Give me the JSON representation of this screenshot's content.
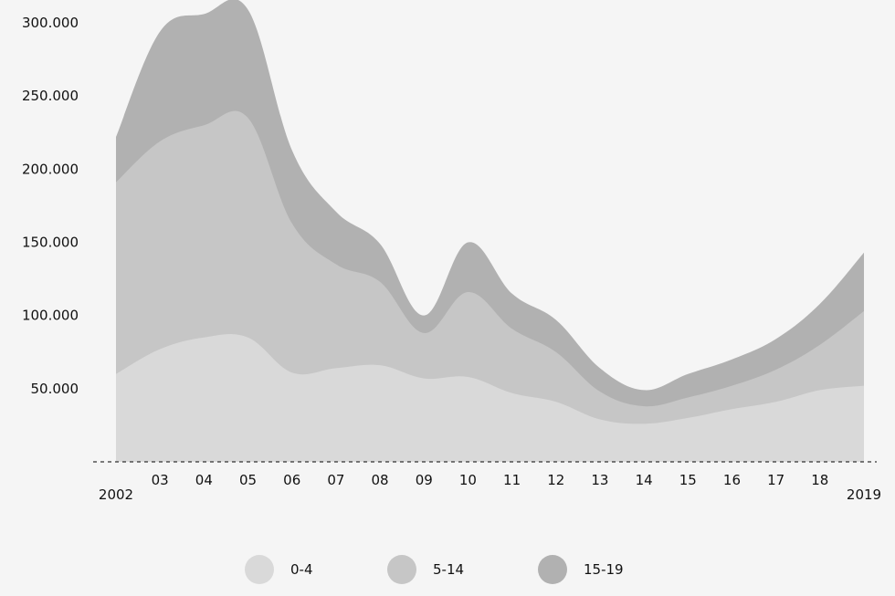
{
  "chart_data": {
    "type": "area",
    "stacked": true,
    "title": "",
    "xlabel": "",
    "ylabel": "",
    "categories": [
      "2002",
      "03",
      "04",
      "05",
      "06",
      "07",
      "08",
      "09",
      "10",
      "11",
      "12",
      "13",
      "14",
      "15",
      "16",
      "17",
      "18",
      "2019"
    ],
    "ylim": [
      0,
      300000
    ],
    "yticks": [
      "50.000",
      "100.000",
      "150.000",
      "200.000",
      "250.000",
      "300.000"
    ],
    "ytick_values": [
      50000,
      100000,
      150000,
      200000,
      250000,
      300000
    ],
    "grid": false,
    "legend_position": "bottom",
    "series": [
      {
        "name": "0-4",
        "color": "#d9d9d9",
        "values": [
          60000,
          77000,
          85000,
          85000,
          61000,
          64000,
          66000,
          57000,
          58000,
          47000,
          41000,
          29000,
          26000,
          30000,
          36000,
          41000,
          49000,
          52000
        ]
      },
      {
        "name": "5-14",
        "color": "#c6c6c6",
        "values": [
          131000,
          142000,
          145000,
          150000,
          102000,
          71000,
          57000,
          31000,
          58000,
          44000,
          34000,
          19000,
          12000,
          14000,
          16000,
          22000,
          31000,
          51000
        ]
      },
      {
        "name": "15-19",
        "color": "#b1b1b1",
        "values": [
          31000,
          75000,
          76000,
          74000,
          50000,
          36000,
          26000,
          12000,
          34000,
          24000,
          22000,
          16000,
          11000,
          16000,
          18000,
          21000,
          28000,
          40000
        ]
      }
    ]
  },
  "legend": [
    {
      "label": "0-4",
      "color": "#d9d9d9"
    },
    {
      "label": "5-14",
      "color": "#c6c6c6"
    },
    {
      "label": "15-19",
      "color": "#b1b1b1"
    }
  ],
  "background": "#f5f5f5"
}
